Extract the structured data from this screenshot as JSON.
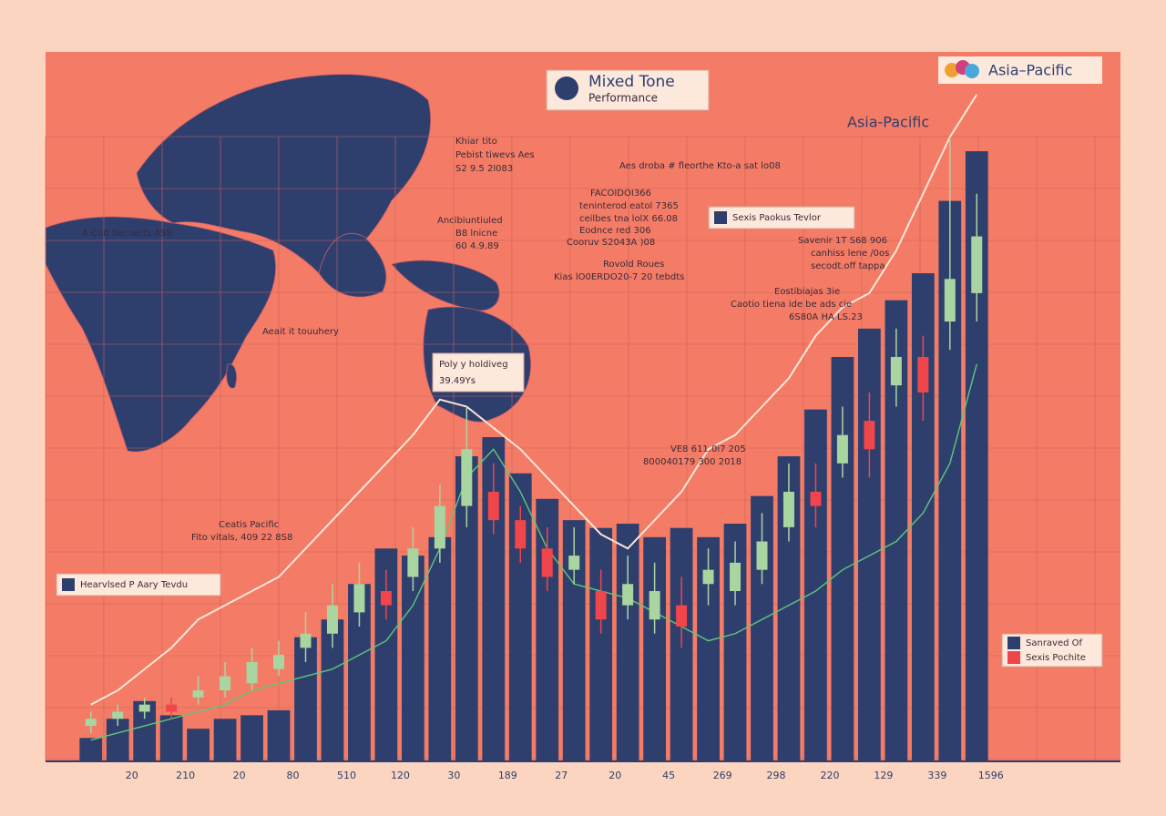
{
  "chart_data": {
    "type": "bar",
    "title": "Mixed Tone",
    "subtitle": "Performance",
    "badge": "Asia–Pacific",
    "heading": "Asia-Pacific",
    "categories": [
      "20",
      null,
      "210",
      null,
      "20",
      null,
      "80",
      null,
      "510",
      null,
      "120",
      null,
      "30",
      null,
      "189",
      null,
      "27",
      null,
      "20",
      null,
      "45",
      null,
      "269",
      null,
      "298",
      null,
      "220",
      null,
      "129",
      null,
      "339",
      null,
      "1596",
      null
    ],
    "values": [
      3.3,
      6,
      8.5,
      6.5,
      4.6,
      6,
      6.5,
      7.2,
      17.5,
      20,
      25,
      30,
      29,
      31.6,
      43,
      45.7,
      40.6,
      37,
      34,
      32.9,
      33.5,
      31.6,
      32.9,
      31.6,
      33.5,
      37.4,
      43,
      49.6,
      57,
      61,
      65,
      68.8,
      79,
      86
    ],
    "color": "#2e3f6e",
    "ylim": [
      0,
      100
    ],
    "candles": {
      "open": [
        5,
        6,
        7,
        8,
        9,
        10,
        11,
        13,
        16,
        18,
        21,
        24,
        26,
        30,
        36,
        38,
        34,
        30,
        27,
        24,
        22,
        20,
        22,
        25,
        24,
        27,
        33,
        38,
        42,
        48,
        53,
        57,
        62,
        66
      ],
      "close": [
        6,
        7,
        8,
        7,
        10,
        12,
        14,
        15,
        18,
        22,
        25,
        22,
        30,
        36,
        44,
        34,
        30,
        26,
        29,
        20,
        25,
        24,
        19,
        27,
        28,
        31,
        38,
        36,
        46,
        44,
        57,
        52,
        68,
        74
      ],
      "high": [
        7,
        8,
        9,
        9,
        12,
        14,
        16,
        17,
        21,
        25,
        28,
        27,
        33,
        39,
        50,
        42,
        36,
        33,
        33,
        27,
        29,
        28,
        26,
        30,
        31,
        35,
        42,
        42,
        50,
        52,
        61,
        60,
        88,
        80
      ],
      "low": [
        4,
        5,
        6,
        6,
        8,
        9,
        10,
        12,
        14,
        16,
        19,
        20,
        24,
        28,
        33,
        32,
        28,
        24,
        25,
        18,
        20,
        18,
        16,
        22,
        22,
        25,
        31,
        33,
        40,
        40,
        50,
        48,
        58,
        62
      ],
      "up_color": "#a8d5a0",
      "down_color": "#f0454a"
    },
    "lines": [
      {
        "color": "#fde6d8",
        "values": [
          8,
          10,
          13,
          16,
          20,
          22,
          24,
          26,
          30,
          34,
          38,
          42,
          46,
          51,
          50,
          47,
          44,
          40,
          36,
          32,
          30,
          34,
          38,
          44,
          46,
          50,
          54,
          60,
          64,
          66,
          72,
          80,
          88,
          94
        ]
      },
      {
        "color": "#5fc77a",
        "values": [
          3,
          4,
          5,
          6,
          7,
          8,
          10,
          11,
          12,
          13,
          15,
          17,
          22,
          30,
          40,
          44,
          38,
          30,
          25,
          24,
          23,
          21,
          19,
          17,
          18,
          20,
          22,
          24,
          27,
          29,
          31,
          35,
          42,
          56
        ]
      }
    ],
    "annotations": [
      "Khiar tito",
      "Pebist tiwevs Aes",
      "S2 9.5 2l083",
      "Aes droba # fleorthe Kto-a sat lo08",
      "FACOIDOI366",
      "teninterod eatol 7365",
      "ceilbes tna lolX 66.08",
      "Eodnce red 306",
      "Cooruv S2043A )08",
      "Ancibiuntiuled",
      "B8 lnicne",
      "60 4.9.89",
      "Rovold Roues",
      "Kias lO0ERDO20-7 20 tebdts",
      "Savenir 1T S68 906",
      "canhiss lene /0os",
      "secodt.off tappa",
      "Eostibiajas 3ie",
      "Caotio tiena ide be ads cie",
      "6S80A HA LS.23",
      "Aeait it touuhery",
      "VE8 611.0i7 205",
      "800040179 300 2018",
      "Ceatis Pacific",
      "Fito vitals, 409 22 8S8",
      "A Coit tlecne ts AS9",
      "Poly y holdiveg",
      "39.49Ys"
    ],
    "legend": [
      {
        "name": "Sexis Paokus Tevlor",
        "color": "#2e3f6e"
      },
      {
        "name": "Hearvlsed P Aary Tevdu",
        "color": "#2e3f6e"
      },
      {
        "name": "Sanraved Of",
        "color": "#2e3f6e"
      },
      {
        "name": "Sexis Pochite",
        "color": "#f0454a"
      }
    ]
  }
}
